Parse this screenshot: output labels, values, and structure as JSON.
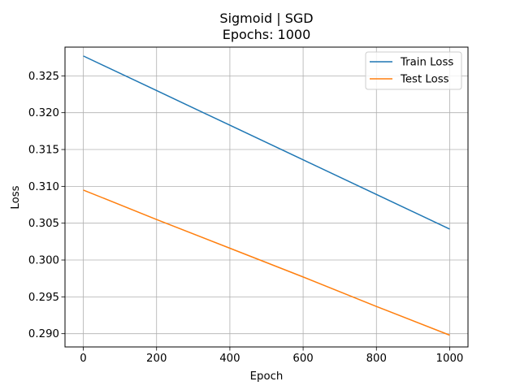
{
  "chart_data": {
    "type": "line",
    "title": "Sigmoid | SGD",
    "subtitle": "Epochs: 1000",
    "xlabel": "Epoch",
    "ylabel": "Loss",
    "xlim": [
      -50,
      1050
    ],
    "ylim": [
      0.2882,
      0.3289
    ],
    "x_ticks": [
      0,
      200,
      400,
      600,
      800,
      1000
    ],
    "x_tick_labels": [
      "0",
      "200",
      "400",
      "600",
      "800",
      "1000"
    ],
    "y_ticks": [
      0.29,
      0.295,
      0.3,
      0.305,
      0.31,
      0.315,
      0.32,
      0.325
    ],
    "y_tick_labels": [
      "0.290",
      "0.295",
      "0.300",
      "0.305",
      "0.310",
      "0.315",
      "0.320",
      "0.325"
    ],
    "grid": true,
    "legend_position": "top-right",
    "series": [
      {
        "name": "Train Loss",
        "color": "#1f77b4",
        "x": [
          0,
          200,
          400,
          600,
          800,
          1000
        ],
        "values": [
          0.3277,
          0.323,
          0.3183,
          0.3136,
          0.3089,
          0.3042
        ]
      },
      {
        "name": "Test Loss",
        "color": "#ff7f0e",
        "x": [
          0,
          200,
          400,
          600,
          800,
          1000
        ],
        "values": [
          0.3095,
          0.3055,
          0.3016,
          0.2977,
          0.2937,
          0.2898
        ]
      }
    ]
  }
}
